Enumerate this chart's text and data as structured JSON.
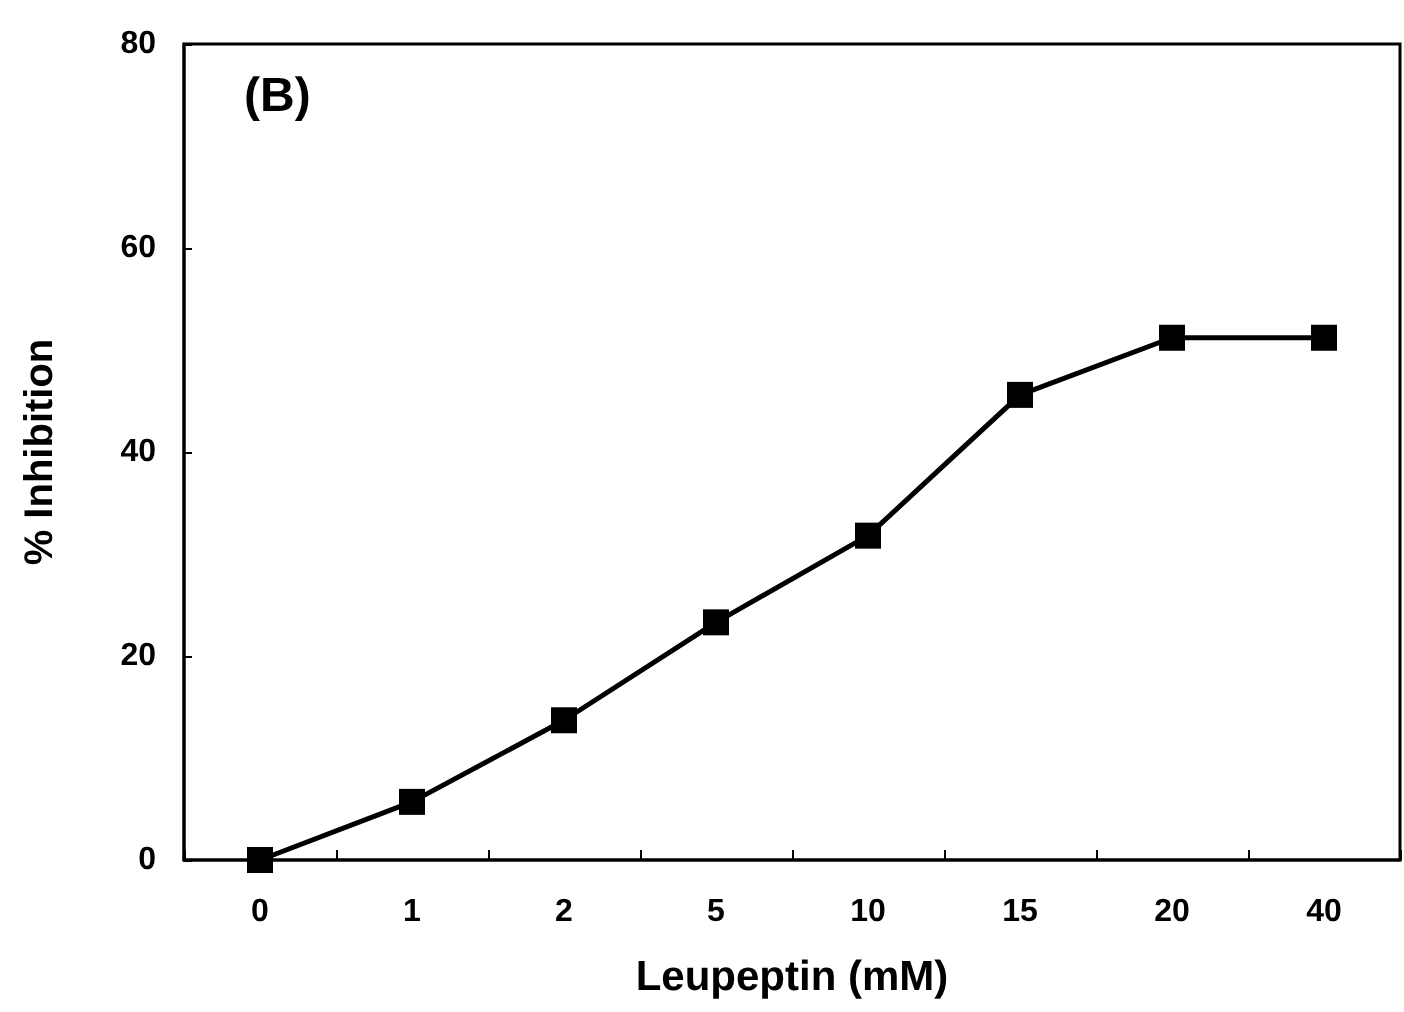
{
  "chart_data": {
    "type": "line",
    "xlabel": "Leupeptin (mM)",
    "ylabel": "% Inhibition",
    "annotations": [
      "(B)"
    ],
    "categories": [
      "0",
      "1",
      "2",
      "5",
      "10",
      "15",
      "20",
      "40"
    ],
    "series": [
      {
        "color": "#000000",
        "values": [
          0,
          5.7,
          13.7,
          23.3,
          31.8,
          45.6,
          51.2,
          51.2
        ]
      }
    ],
    "ylim": [
      0,
      80
    ],
    "yticks": [
      0,
      20,
      40,
      60,
      80
    ],
    "grid": false,
    "marker": "square",
    "line_style": "solid"
  }
}
